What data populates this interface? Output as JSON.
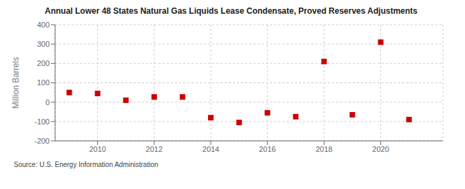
{
  "chart_data": {
    "type": "scatter",
    "title": "Annual Lower 48 States Natural Gas Liquids Lease Condensate, Proved Reserves Adjustments",
    "y_label": "Million Barrels",
    "annotations": [
      "Source: U.S. Energy Information Administration"
    ],
    "x": [
      2009,
      2010,
      2011,
      2012,
      2013,
      2014,
      2015,
      2016,
      2017,
      2018,
      2019,
      2020,
      2021
    ],
    "values": [
      50,
      45,
      10,
      27,
      27,
      -80,
      -105,
      -55,
      -75,
      210,
      -65,
      310,
      -90
    ],
    "xlim": [
      2008.5,
      2022.2
    ],
    "xticks": [
      2010,
      2012,
      2014,
      2016,
      2018,
      2020
    ],
    "ylim": [
      -200,
      400
    ],
    "yticks": [
      -200,
      -100,
      0,
      100,
      200,
      300,
      400
    ],
    "color": "#cc0000",
    "marker": "square",
    "grid": true
  }
}
